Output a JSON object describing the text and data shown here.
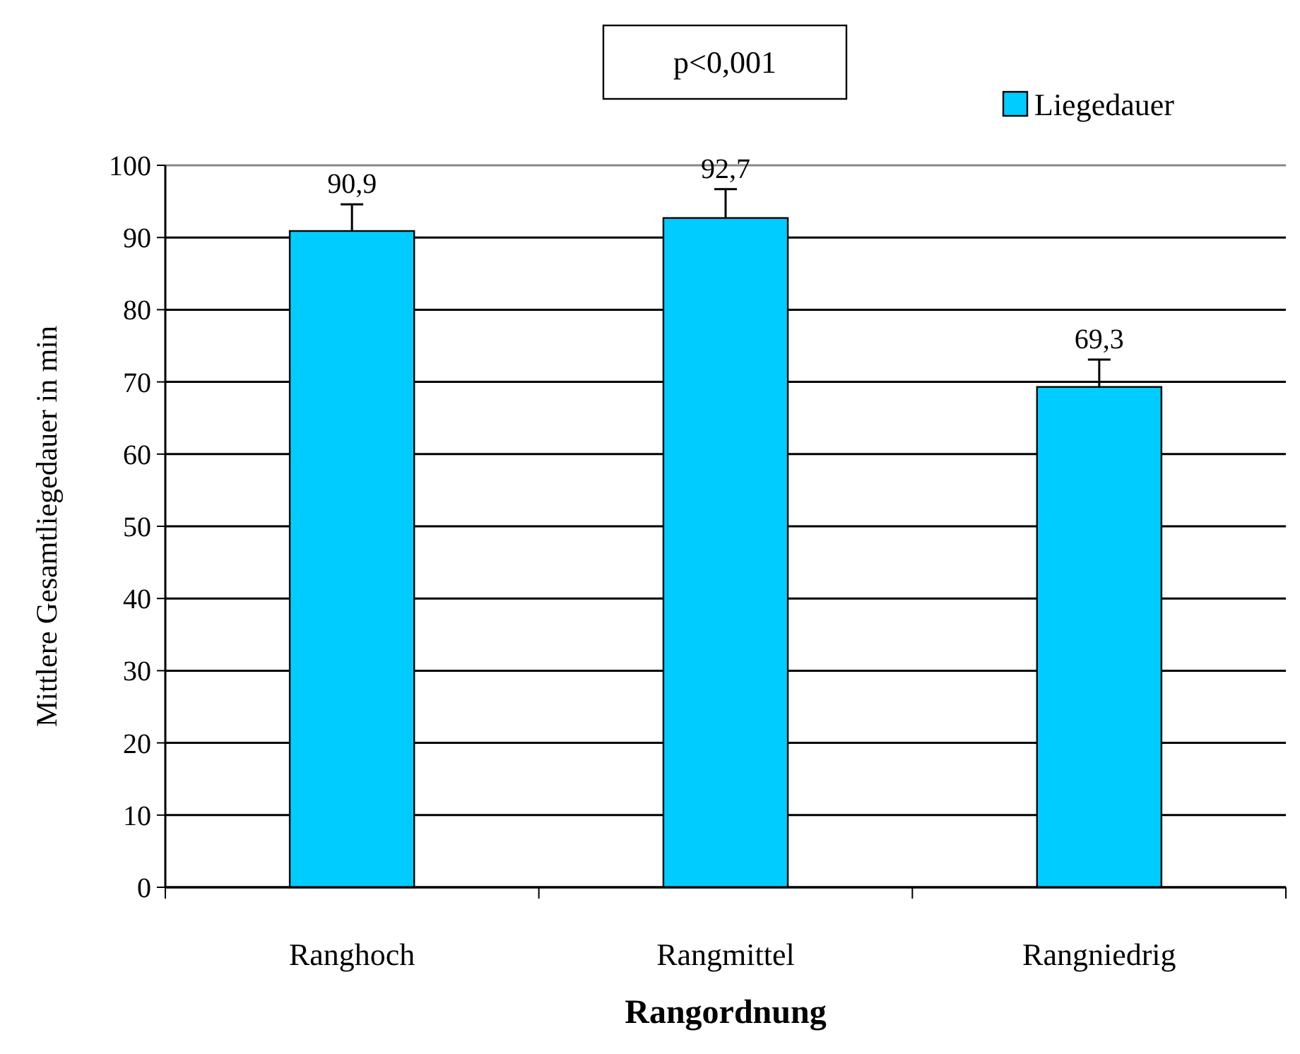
{
  "chart_data": {
    "type": "bar",
    "xlabel": "Rangordnung",
    "ylabel": "Mittlere Gesamtliegedauer in min",
    "categories": [
      "Ranghoch",
      "Rangmittel",
      "Rangniedrig"
    ],
    "series": [
      {
        "name": "Liegedauer",
        "color": "#00ccff",
        "values": [
          90.9,
          92.7,
          69.3
        ],
        "value_labels": [
          "90,9",
          "92,7",
          "69,3"
        ],
        "errors": [
          3.7,
          4,
          3.8
        ]
      }
    ],
    "ylim": [
      0,
      100
    ],
    "yticks": [
      0,
      10,
      20,
      30,
      40,
      50,
      60,
      70,
      80,
      90,
      100
    ],
    "grid": "y",
    "legend": "top right",
    "annotations": [
      "p<0,001"
    ]
  }
}
